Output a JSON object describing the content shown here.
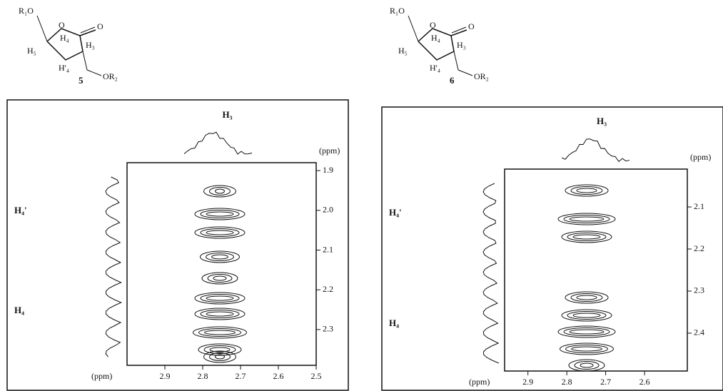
{
  "structures": [
    {
      "number": "5",
      "r1o": "R₁O",
      "o": "O",
      "co": "O",
      "h5": "H₅",
      "h4": "H₄",
      "h4p": "H'₄",
      "h3": "H₃",
      "or2": "OR₂"
    },
    {
      "number": "6",
      "r1o": "R₁O",
      "o": "O",
      "co": "O",
      "h5": "H₅",
      "h4": "H₄",
      "h4p": "H'₄",
      "h3": "H₃",
      "or2": "OR₂"
    }
  ],
  "panels": [
    {
      "h3": "H₃",
      "h4p": "H₄'",
      "h4": "H₄",
      "x_unit": "(ppm)",
      "y_unit": "(ppm)",
      "xlim": [
        3.0,
        2.5
      ],
      "xticks": [
        2.9,
        2.8,
        2.7,
        2.6,
        2.5
      ],
      "ylim": [
        1.88,
        2.39
      ],
      "yticks": [
        1.9,
        {
          "value": 2,
          "label": "2.0"
        },
        2.1,
        2.2,
        2.3
      ]
    },
    {
      "h3": "H₃",
      "h4p": "H₄'",
      "h4": "H₄",
      "x_unit": "(ppm)",
      "y_unit": "(ppm)",
      "xlim": [
        2.96,
        2.49
      ],
      "xticks": [
        2.9,
        2.8,
        2.7,
        2.6
      ],
      "ylim": [
        2.01,
        2.49
      ],
      "yticks": [
        2.1,
        2.2,
        2.3,
        2.4
      ]
    }
  ]
}
